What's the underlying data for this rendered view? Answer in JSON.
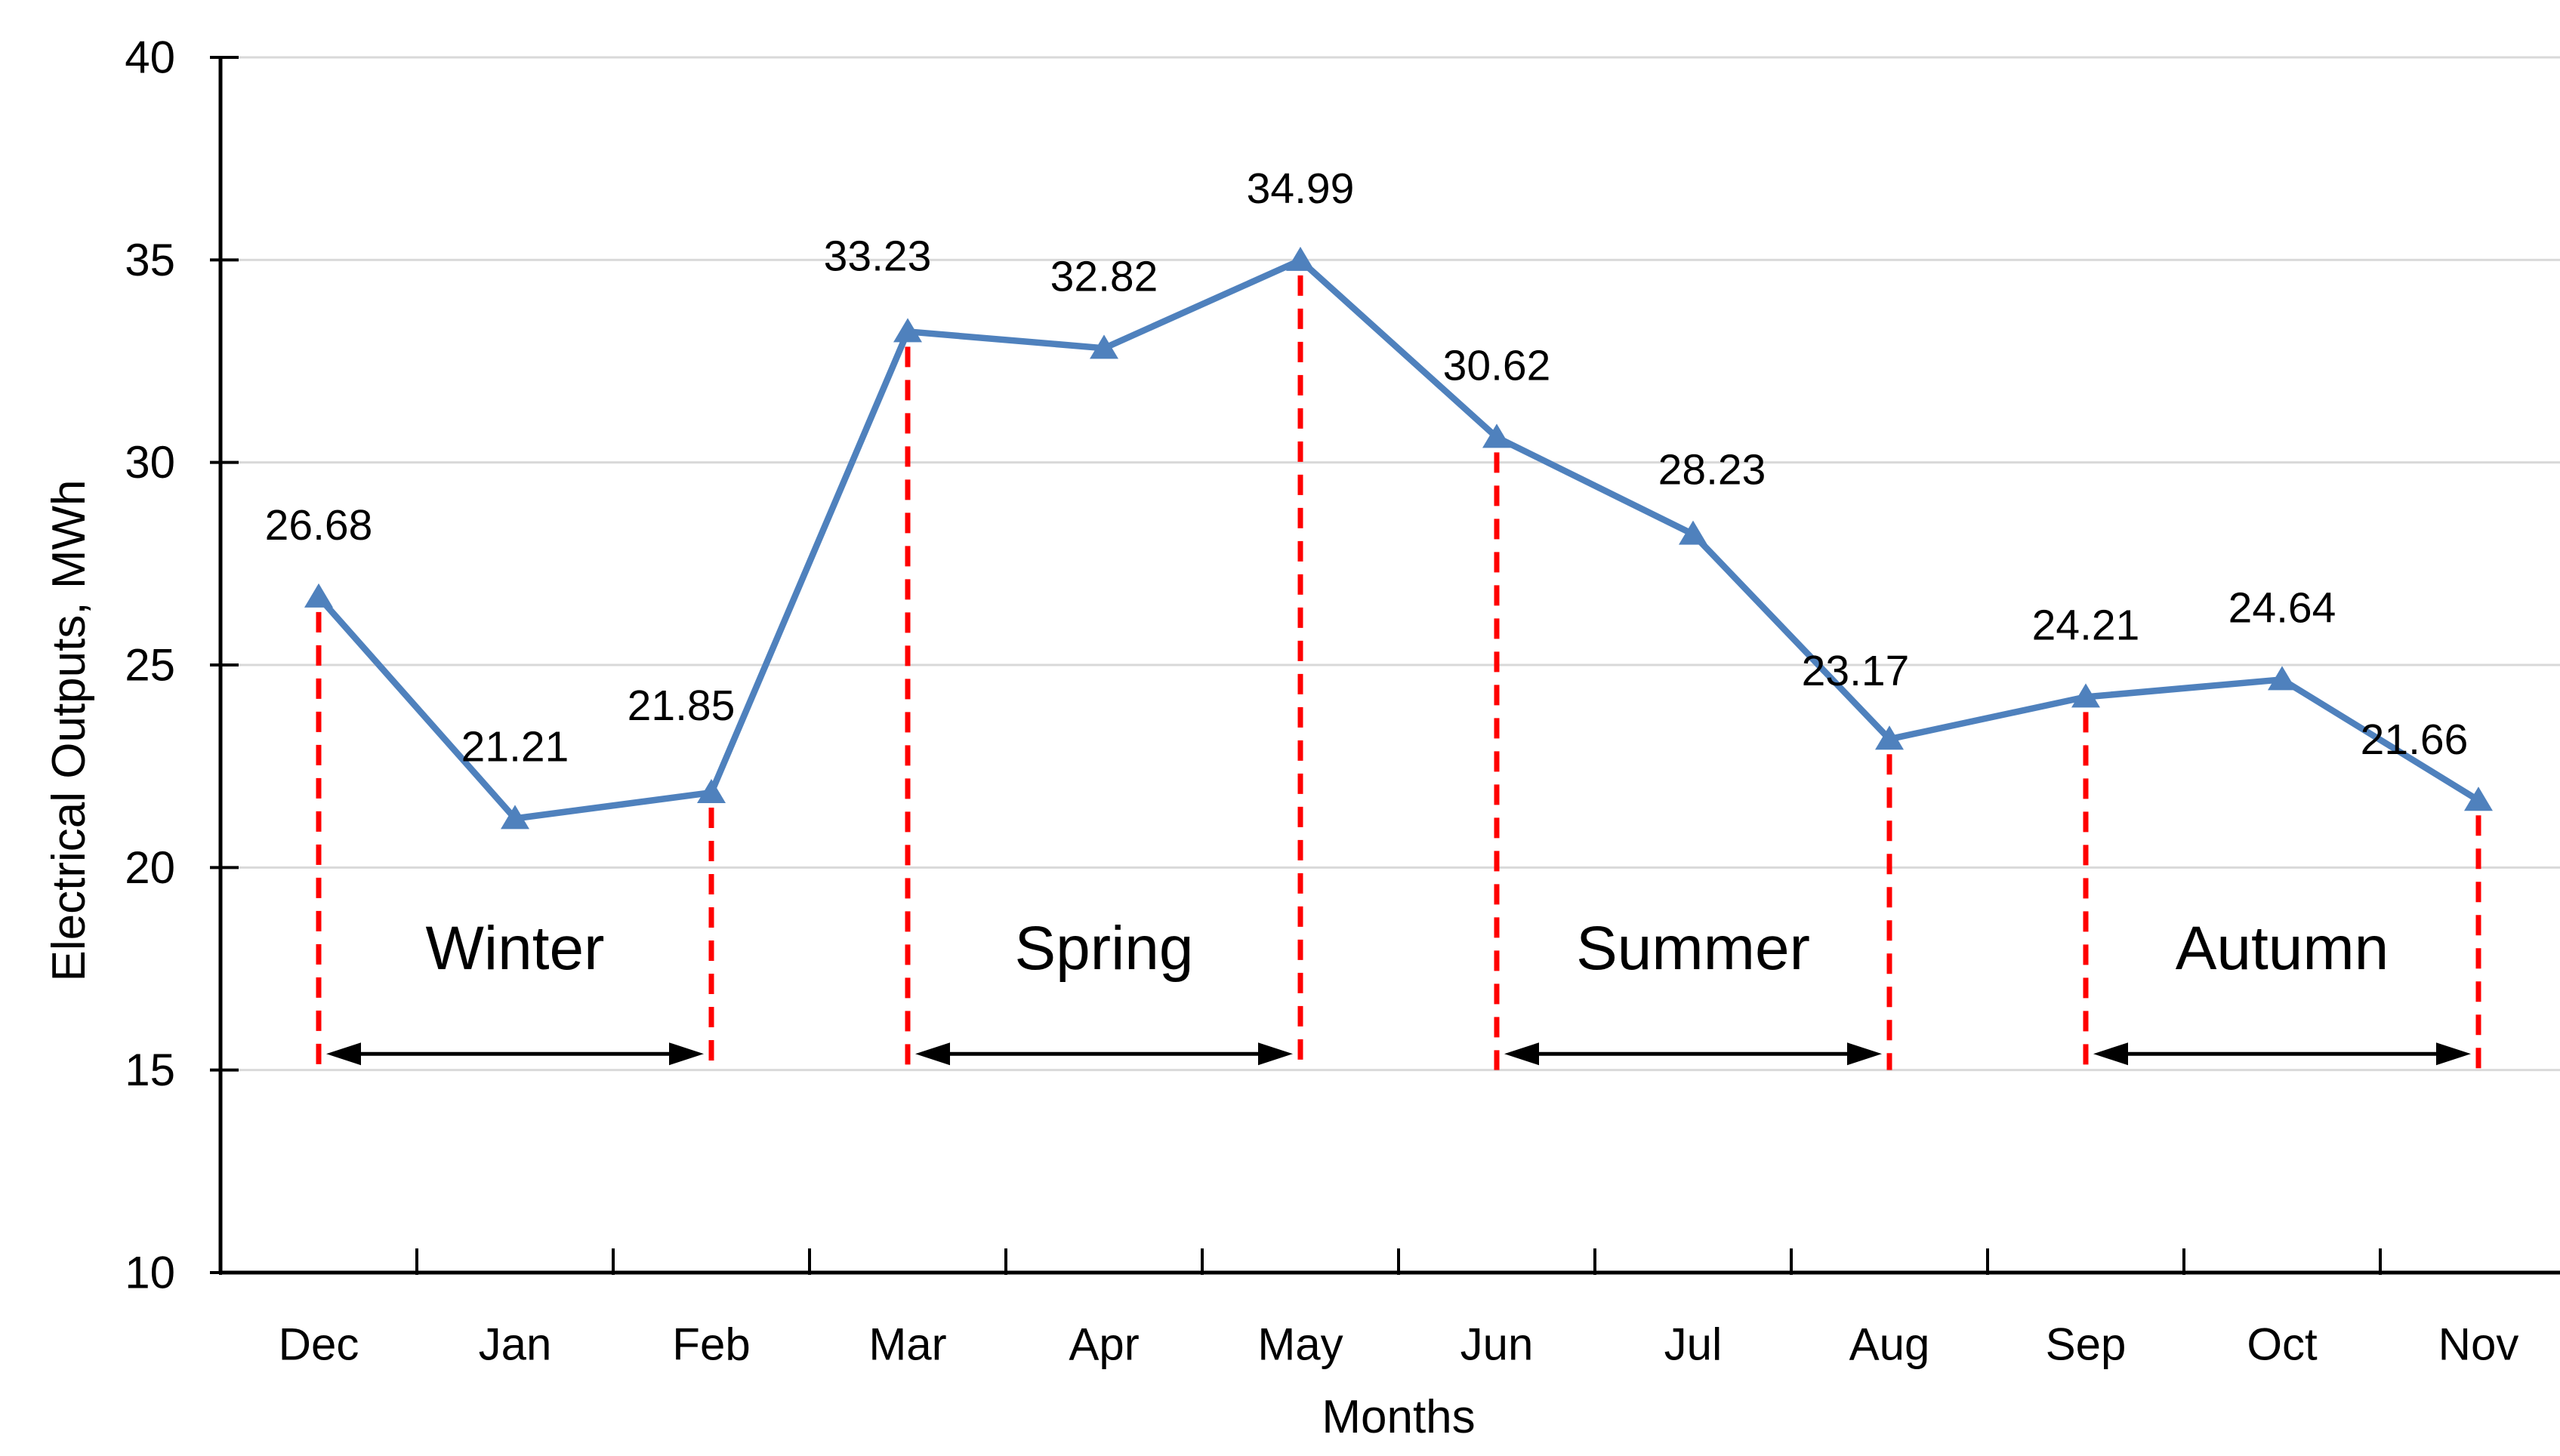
{
  "chart_data": {
    "type": "line",
    "title": "",
    "categories": [
      "Dec",
      "Jan",
      "Feb",
      "Mar",
      "Apr",
      "May",
      "Jun",
      "Jul",
      "Aug",
      "Sep",
      "Oct",
      "Nov"
    ],
    "series": [
      {
        "name": "Electrical Outputs",
        "values": [
          26.68,
          21.21,
          21.85,
          33.23,
          32.82,
          34.99,
          30.62,
          28.23,
          23.17,
          24.21,
          24.64,
          21.66
        ],
        "data_labels": [
          "26.68",
          "21.21",
          "21.85",
          "33.23",
          "32.82",
          "34.99",
          "30.62",
          "28.23",
          "23.17",
          "24.21",
          "24.64",
          "21.66"
        ],
        "color": "#4F81BD",
        "marker": "triangle-up"
      }
    ],
    "xlabel": "Months",
    "ylabel": "Electrical Outputs, MWh",
    "ylim": [
      10,
      40
    ],
    "yticks": [
      10,
      15,
      20,
      25,
      30,
      35,
      40
    ],
    "grid": "horizontal",
    "legend": "none",
    "seasons": [
      {
        "label": "Winter",
        "start": "Dec",
        "end": "Feb"
      },
      {
        "label": "Spring",
        "start": "Mar",
        "end": "May"
      },
      {
        "label": "Summer",
        "start": "Jun",
        "end": "Aug"
      },
      {
        "label": "Autumn",
        "start": "Sep",
        "end": "Nov"
      }
    ],
    "season_style": {
      "boundary_line_color": "#FF0000",
      "boundary_line_style": "dashed",
      "boundary_line_bottom_value": 15,
      "arrow_color": "#000000",
      "arrow_y_value": 15.4,
      "label_y_value": 18.0
    },
    "colors": {
      "background": "#FFFFFF",
      "gridline": "#D9D9D9",
      "axis": "#000000",
      "text": "#000000",
      "series_line": "#4F81BD",
      "boundary_dash": "#FF0000"
    }
  }
}
